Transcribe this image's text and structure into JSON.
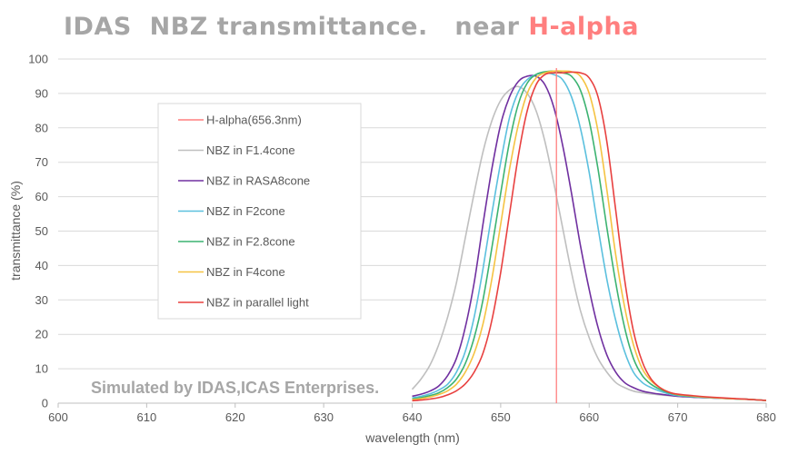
{
  "title": {
    "main": "IDAS  NBZ transmittance.   near ",
    "highlight": "H-alpha"
  },
  "watermark": "Simulated by IDAS,ICAS Enterprises.",
  "chart_data": {
    "type": "line",
    "xlabel": "wavelength (nm)",
    "ylabel": "transmittance (%)",
    "xlim": [
      600,
      680
    ],
    "ylim": [
      0,
      100
    ],
    "xticks": [
      600,
      610,
      620,
      630,
      640,
      650,
      660,
      670,
      680
    ],
    "yticks": [
      0,
      10,
      20,
      30,
      40,
      50,
      60,
      70,
      80,
      90,
      100
    ],
    "grid": "horizontal",
    "legend_position": "center-left",
    "vline": {
      "name": "H-alpha(656.3nm)",
      "x": 656.3,
      "color": "#ff7f7f"
    },
    "series": [
      {
        "name": "NBZ   in F1.4cone",
        "color": "#bfbfbf",
        "x": [
          640,
          641,
          642,
          643,
          644,
          645,
          646,
          647,
          648,
          649,
          650,
          651,
          652,
          653,
          654,
          655,
          656,
          657,
          658,
          659,
          660,
          661,
          662,
          663,
          664,
          665,
          666,
          667,
          668,
          669,
          670,
          672,
          674,
          676,
          678,
          680
        ],
        "y": [
          4,
          7,
          11,
          17,
          25,
          35,
          48,
          61,
          73,
          82,
          88,
          91,
          92,
          90,
          85,
          76,
          64,
          51,
          38,
          27,
          19,
          13,
          9,
          6,
          4.5,
          3.5,
          3,
          2.7,
          2.4,
          2.2,
          2,
          1.7,
          1.5,
          1.3,
          1.1,
          0.8
        ]
      },
      {
        "name": "NBZ   in RASA8cone",
        "color": "#7030a0",
        "x": [
          640,
          641,
          642,
          643,
          644,
          645,
          646,
          647,
          648,
          649,
          650,
          651,
          652,
          653,
          654,
          655,
          656,
          657,
          658,
          659,
          660,
          661,
          662,
          663,
          664,
          665,
          666,
          667,
          668,
          669,
          670,
          672,
          674,
          676,
          678,
          680
        ],
        "y": [
          2,
          2.6,
          3.5,
          5,
          8,
          13,
          22,
          35,
          52,
          68,
          81,
          89,
          93.5,
          95,
          95,
          92.5,
          86,
          75,
          61,
          46,
          33,
          22,
          14,
          9,
          6,
          4.5,
          3.5,
          3,
          2.6,
          2.3,
          2,
          1.7,
          1.5,
          1.3,
          1.1,
          0.8
        ]
      },
      {
        "name": "NBZ   in F2cone",
        "color": "#5bc0de",
        "x": [
          640,
          641,
          642,
          643,
          644,
          645,
          646,
          647,
          648,
          649,
          650,
          651,
          652,
          653,
          654,
          655,
          656,
          657,
          658,
          659,
          660,
          661,
          662,
          663,
          664,
          665,
          666,
          667,
          668,
          669,
          670,
          672,
          674,
          676,
          678,
          680
        ],
        "y": [
          1.5,
          2,
          2.7,
          3.8,
          5.5,
          9,
          15,
          25,
          39,
          55,
          70,
          83,
          90.5,
          94,
          95.5,
          96,
          95.5,
          94,
          89,
          80,
          67,
          51,
          36,
          24,
          15,
          9,
          6,
          4.5,
          3.5,
          2.7,
          2.2,
          1.8,
          1.5,
          1.3,
          1.1,
          0.8
        ]
      },
      {
        "name": "NBZ   in F2.8cone",
        "color": "#3cb371",
        "x": [
          640,
          641,
          642,
          643,
          644,
          645,
          646,
          647,
          648,
          649,
          650,
          651,
          652,
          653,
          654,
          655,
          656,
          657,
          658,
          659,
          660,
          661,
          662,
          663,
          664,
          665,
          666,
          667,
          668,
          669,
          670,
          672,
          674,
          676,
          678,
          680
        ],
        "y": [
          1.2,
          1.6,
          2.2,
          3,
          4.5,
          7,
          11.5,
          19,
          30,
          45,
          61,
          76,
          87,
          93,
          95.5,
          96.3,
          96.5,
          96,
          95,
          91,
          82,
          68,
          51,
          35,
          22,
          13,
          8,
          5.5,
          4,
          3,
          2.4,
          1.9,
          1.6,
          1.3,
          1.1,
          0.8
        ]
      },
      {
        "name": "NBZ   in F4cone",
        "color": "#f5c342",
        "x": [
          640,
          641,
          642,
          643,
          644,
          645,
          646,
          647,
          648,
          649,
          650,
          651,
          652,
          653,
          654,
          655,
          656,
          657,
          658,
          659,
          660,
          661,
          662,
          663,
          664,
          665,
          666,
          667,
          668,
          669,
          670,
          672,
          674,
          676,
          678,
          680
        ],
        "y": [
          1,
          1.3,
          1.8,
          2.5,
          3.6,
          5.5,
          9,
          14.5,
          23,
          36,
          52,
          68,
          81,
          90,
          94.5,
          96,
          96.5,
          96.5,
          96.3,
          95,
          90,
          79,
          62,
          43,
          28,
          17,
          10,
          6.5,
          4.5,
          3.2,
          2.5,
          2,
          1.6,
          1.3,
          1.1,
          0.8
        ]
      },
      {
        "name": "NBZ   in parallel light",
        "color": "#e8403f",
        "x": [
          640,
          641,
          642,
          643,
          644,
          645,
          646,
          647,
          648,
          649,
          650,
          651,
          652,
          653,
          654,
          655,
          656,
          657,
          658,
          659,
          660,
          661,
          662,
          663,
          664,
          665,
          666,
          667,
          668,
          669,
          670,
          672,
          674,
          676,
          678,
          680
        ],
        "y": [
          0.7,
          0.9,
          1.2,
          1.6,
          2.4,
          3.6,
          5.6,
          9,
          14.5,
          24,
          38,
          55,
          72,
          85,
          92.5,
          95.5,
          96,
          96,
          96.2,
          96,
          94.5,
          89,
          76,
          56,
          36,
          21,
          12,
          7,
          4.5,
          3.2,
          2.6,
          2.1,
          1.7,
          1.4,
          1.1,
          0.8
        ]
      }
    ]
  }
}
